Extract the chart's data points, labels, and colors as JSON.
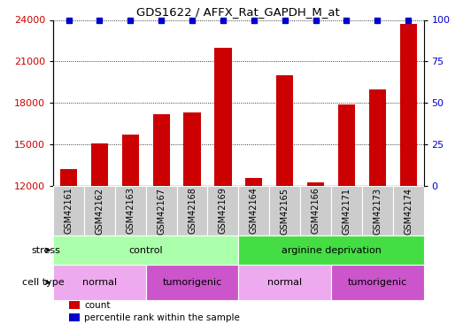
{
  "title": "GDS1622 / AFFX_Rat_GAPDH_M_at",
  "samples": [
    "GSM42161",
    "GSM42162",
    "GSM42163",
    "GSM42167",
    "GSM42168",
    "GSM42169",
    "GSM42164",
    "GSM42165",
    "GSM42166",
    "GSM42171",
    "GSM42173",
    "GSM42174"
  ],
  "counts": [
    13200,
    15050,
    15700,
    17200,
    17300,
    22000,
    12600,
    20000,
    12250,
    17900,
    19000,
    23700
  ],
  "percentile_ranks": [
    100,
    100,
    100,
    100,
    100,
    100,
    100,
    100,
    100,
    100,
    100,
    100
  ],
  "bar_color": "#cc0000",
  "dot_color": "#0000cc",
  "ylim_left": [
    12000,
    24000
  ],
  "ylim_right": [
    0,
    100
  ],
  "yticks_left": [
    12000,
    15000,
    18000,
    21000,
    24000
  ],
  "yticks_right": [
    0,
    25,
    50,
    75,
    100
  ],
  "stress_groups": [
    {
      "label": "control",
      "start": 0,
      "end": 5,
      "color": "#aaffaa"
    },
    {
      "label": "arginine deprivation",
      "start": 6,
      "end": 11,
      "color": "#44dd44"
    }
  ],
  "cell_type_groups": [
    {
      "label": "normal",
      "start": 0,
      "end": 2,
      "color": "#eeaaee"
    },
    {
      "label": "tumorigenic",
      "start": 3,
      "end": 5,
      "color": "#cc55cc"
    },
    {
      "label": "normal",
      "start": 6,
      "end": 8,
      "color": "#eeaaee"
    },
    {
      "label": "tumorigenic",
      "start": 9,
      "end": 11,
      "color": "#cc55cc"
    }
  ],
  "legend_items": [
    {
      "label": "count",
      "color": "#cc0000"
    },
    {
      "label": "percentile rank within the sample",
      "color": "#0000cc"
    }
  ],
  "stress_label": "stress",
  "cell_type_label": "cell type",
  "sample_box_color": "#cccccc",
  "grid_color": "#000000",
  "baseline": 12000
}
